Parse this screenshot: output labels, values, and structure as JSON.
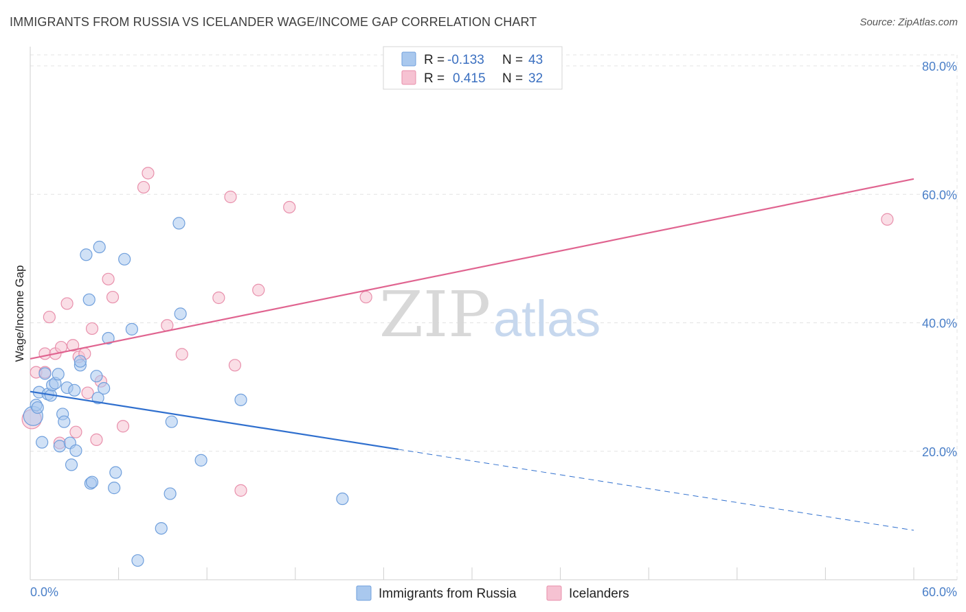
{
  "title": "IMMIGRANTS FROM RUSSIA VS ICELANDER WAGE/INCOME GAP CORRELATION CHART",
  "source": "Source: ZipAtlas.com",
  "watermark": {
    "part1": "ZIP",
    "part2": "atlas"
  },
  "colors": {
    "blue_fill": "#a9c8ee",
    "blue_stroke": "#6f9fdc",
    "blue_line": "#2f6fce",
    "pink_fill": "#f6c2d2",
    "pink_stroke": "#e88fab",
    "pink_line": "#e06490",
    "grid": "#e3e3e3"
  },
  "legend": {
    "rows": [
      {
        "r_label": "R =",
        "r_value": "-0.133",
        "n_label": "N =",
        "n_value": "43"
      },
      {
        "r_label": "R =",
        "r_value": "0.415",
        "n_label": "N =",
        "n_value": "32"
      }
    ]
  },
  "chart_data": {
    "type": "scatter",
    "title": "IMMIGRANTS FROM RUSSIA VS ICELANDER WAGE/INCOME GAP CORRELATION CHART",
    "xlabel": "",
    "ylabel": "Wage/Income Gap",
    "xlim": [
      0,
      60
    ],
    "ylim": [
      0,
      80
    ],
    "x_tick_labels": {
      "min": "0.0%",
      "max": "60.0%"
    },
    "y_ticks": [
      {
        "value": 20,
        "label": "20.0%"
      },
      {
        "value": 40,
        "label": "40.0%"
      },
      {
        "value": 60,
        "label": "60.0%"
      },
      {
        "value": 80,
        "label": "80.0%"
      }
    ],
    "series": [
      {
        "name": "Immigrants from Russia",
        "points": [
          [
            0.2,
            25.5
          ],
          [
            0.4,
            27.2
          ],
          [
            0.5,
            26.8
          ],
          [
            0.6,
            29.2
          ],
          [
            0.8,
            21.4
          ],
          [
            1.0,
            32.1
          ],
          [
            1.2,
            28.9
          ],
          [
            1.4,
            28.7
          ],
          [
            1.5,
            30.3
          ],
          [
            1.7,
            30.6
          ],
          [
            1.9,
            32.0
          ],
          [
            2.0,
            20.8
          ],
          [
            2.2,
            25.8
          ],
          [
            2.3,
            24.6
          ],
          [
            2.5,
            29.9
          ],
          [
            2.7,
            21.3
          ],
          [
            2.8,
            17.9
          ],
          [
            3.0,
            29.5
          ],
          [
            3.1,
            20.1
          ],
          [
            3.4,
            33.4
          ],
          [
            3.4,
            34.0
          ],
          [
            3.8,
            50.6
          ],
          [
            4.0,
            43.6
          ],
          [
            4.1,
            15.0
          ],
          [
            4.2,
            15.2
          ],
          [
            4.5,
            31.7
          ],
          [
            4.6,
            28.3
          ],
          [
            4.7,
            51.8
          ],
          [
            5.0,
            29.8
          ],
          [
            5.3,
            37.6
          ],
          [
            5.7,
            14.3
          ],
          [
            5.8,
            16.7
          ],
          [
            6.4,
            49.9
          ],
          [
            6.9,
            39.0
          ],
          [
            7.3,
            3.0
          ],
          [
            8.9,
            8.0
          ],
          [
            9.5,
            13.4
          ],
          [
            9.6,
            24.6
          ],
          [
            10.1,
            55.5
          ],
          [
            10.2,
            41.4
          ],
          [
            11.6,
            18.6
          ],
          [
            14.3,
            28.0
          ],
          [
            21.2,
            12.6
          ]
        ]
      },
      {
        "name": "Icelanders",
        "points": [
          [
            0.1,
            25.0
          ],
          [
            0.4,
            32.3
          ],
          [
            1.0,
            32.3
          ],
          [
            1.0,
            35.2
          ],
          [
            1.3,
            40.9
          ],
          [
            1.7,
            35.2
          ],
          [
            2.0,
            21.3
          ],
          [
            2.1,
            36.2
          ],
          [
            2.5,
            43.0
          ],
          [
            2.9,
            36.5
          ],
          [
            3.1,
            23.0
          ],
          [
            3.3,
            34.7
          ],
          [
            3.7,
            35.2
          ],
          [
            3.9,
            29.1
          ],
          [
            4.2,
            39.1
          ],
          [
            4.5,
            21.8
          ],
          [
            4.8,
            30.9
          ],
          [
            5.3,
            46.8
          ],
          [
            5.6,
            44.0
          ],
          [
            6.3,
            23.9
          ],
          [
            7.7,
            61.1
          ],
          [
            8.0,
            63.3
          ],
          [
            9.3,
            39.6
          ],
          [
            10.3,
            35.1
          ],
          [
            12.8,
            43.9
          ],
          [
            13.6,
            59.6
          ],
          [
            13.9,
            33.4
          ],
          [
            14.3,
            13.9
          ],
          [
            15.5,
            45.1
          ],
          [
            17.6,
            58.0
          ],
          [
            22.8,
            44.0
          ],
          [
            58.2,
            56.1
          ]
        ]
      }
    ],
    "trend_lines": [
      {
        "name": "Immigrants from Russia",
        "x_start": 0,
        "y_start": 29.3,
        "x_solid_end": 25,
        "x_end": 60,
        "y_end": 7.7
      },
      {
        "name": "Icelanders",
        "x_start": 0,
        "y_start": 34.4,
        "x_end": 60,
        "y_end": 62.4
      }
    ]
  }
}
